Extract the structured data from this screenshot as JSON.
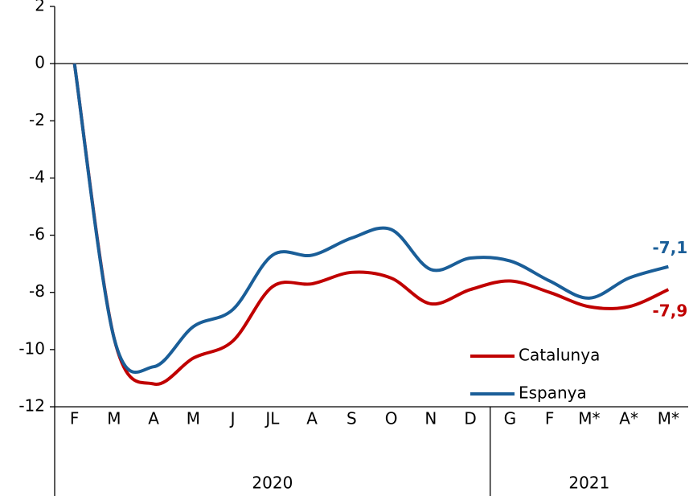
{
  "chart_data": {
    "type": "line",
    "categories": [
      "F",
      "M",
      "A",
      "M",
      "J",
      "JL",
      "A",
      "S",
      "O",
      "N",
      "D",
      "G",
      "F",
      "M*",
      "A*",
      "M*"
    ],
    "x_groups": [
      {
        "label": "2020",
        "count": 11
      },
      {
        "label": "2021",
        "count": 5
      }
    ],
    "series": [
      {
        "name": "Catalunya",
        "color": "#c00000",
        "values": [
          0,
          -9.6,
          -11.2,
          -10.3,
          -9.7,
          -7.8,
          -7.7,
          -7.3,
          -7.5,
          -8.4,
          -7.9,
          -7.6,
          -8.0,
          -8.5,
          -8.5,
          -7.9
        ],
        "value_labels": [
          null,
          null,
          null,
          null,
          null,
          null,
          null,
          null,
          null,
          null,
          null,
          null,
          null,
          null,
          null,
          "-7,9"
        ]
      },
      {
        "name": "Espanya",
        "color": "#1a5e98",
        "values": [
          0,
          -9.6,
          -10.6,
          -9.2,
          -8.6,
          -6.7,
          -6.7,
          -6.1,
          -5.8,
          -7.2,
          -6.8,
          -6.9,
          -7.6,
          -8.2,
          -7.5,
          -7.1
        ],
        "value_labels": [
          null,
          null,
          null,
          null,
          null,
          null,
          null,
          null,
          null,
          null,
          null,
          null,
          null,
          null,
          null,
          "-7,1"
        ]
      }
    ],
    "ylim": [
      -12,
      2
    ],
    "yticks": [
      -12,
      -10,
      -8,
      -6,
      -4,
      -2,
      0,
      2
    ],
    "legend": "lower-right"
  }
}
